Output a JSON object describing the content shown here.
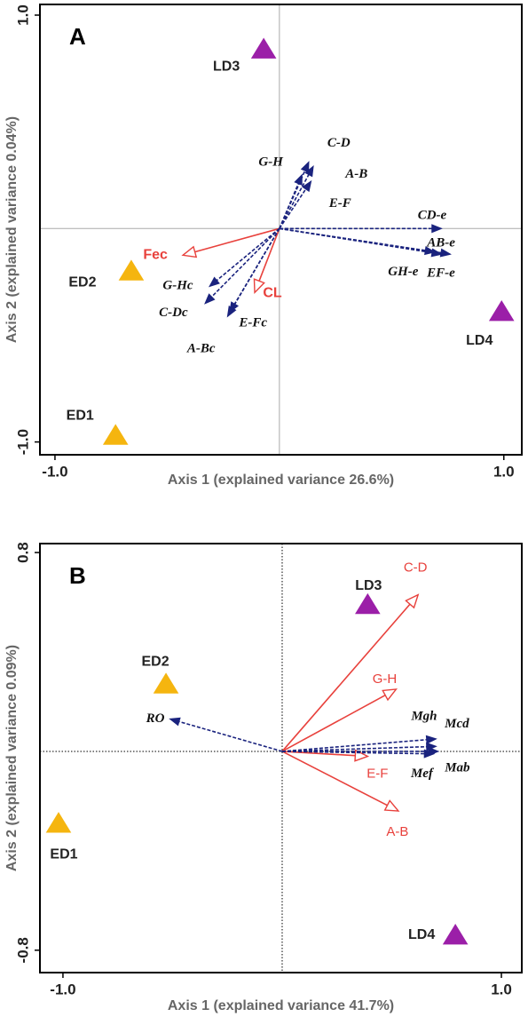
{
  "chart_data": [
    {
      "type": "biplot",
      "title": "A",
      "xlabel": "Axis 1 (explained variance 26.6%)",
      "ylabel": "Axis 2 (explained variance 0.04%)",
      "xlim": [
        -1.067,
        1.08
      ],
      "ylim": [
        -1.06,
        1.05
      ],
      "xticks": [
        {
          "value": -1,
          "label": "-1.0"
        },
        {
          "value": 1,
          "label": "1.0"
        }
      ],
      "yticks": [
        {
          "value": -1,
          "label": "-1.0"
        },
        {
          "value": 1,
          "label": "1.0"
        }
      ],
      "samples": [
        {
          "name": "LD3",
          "x": -0.07,
          "y": 0.84,
          "color": "#9b1fa8"
        },
        {
          "name": "LD4",
          "x": 0.99,
          "y": -0.39,
          "color": "#9b1fa8"
        },
        {
          "name": "ED2",
          "x": -0.66,
          "y": -0.2,
          "color": "#f5b50f"
        },
        {
          "name": "ED1",
          "x": -0.73,
          "y": -0.97,
          "color": "#f5b50f"
        }
      ],
      "vectors": [
        {
          "name": "Fec",
          "x": -0.43,
          "y": -0.125,
          "color": "#e8413c"
        },
        {
          "name": "CL",
          "x": -0.11,
          "y": -0.3,
          "color": "#e8413c"
        },
        {
          "name": "G-H",
          "x": 0.1,
          "y": 0.25,
          "color": "#1a237e"
        },
        {
          "name": "C-D",
          "x": 0.13,
          "y": 0.31,
          "color": "#1a237e"
        },
        {
          "name": "A-B",
          "x": 0.15,
          "y": 0.29,
          "color": "#1a237e"
        },
        {
          "name": "E-F",
          "x": 0.14,
          "y": 0.22,
          "color": "#1a237e"
        },
        {
          "name": "CD-e",
          "x": 0.72,
          "y": 0,
          "color": "#1a237e"
        },
        {
          "name": "AB-e",
          "x": 0.76,
          "y": -0.12,
          "color": "#1a237e"
        },
        {
          "name": "EF-e",
          "x": 0.72,
          "y": -0.12,
          "color": "#1a237e"
        },
        {
          "name": "GH-e",
          "x": 0.69,
          "y": -0.11,
          "color": "#1a237e"
        },
        {
          "name": "G-Hc",
          "x": -0.31,
          "y": -0.27,
          "color": "#1a237e"
        },
        {
          "name": "C-Dc",
          "x": -0.33,
          "y": -0.35,
          "color": "#1a237e"
        },
        {
          "name": "E-Fc",
          "x": -0.22,
          "y": -0.39,
          "color": "#1a237e"
        },
        {
          "name": "A-Bc",
          "x": -0.23,
          "y": -0.41,
          "color": "#1a237e"
        }
      ]
    },
    {
      "type": "biplot",
      "title": "B",
      "xlabel": "Axis 1 (explained variance 41.7%)",
      "ylabel": "Axis 2 (explained variance 0.09%)",
      "xlim": [
        -1.105,
        1.093
      ],
      "ylim": [
        -0.89,
        0.836
      ],
      "xticks": [
        {
          "value": -1,
          "label": "-1.0"
        },
        {
          "value": 1,
          "label": "1.0"
        }
      ],
      "yticks": [
        -0.8,
        0.8
      ],
      "samples": [
        {
          "name": "LD3",
          "x": 0.39,
          "y": 0.59,
          "color": "#9b1fa8"
        },
        {
          "name": "LD4",
          "x": 0.79,
          "y": -0.74,
          "color": "#9b1fa8"
        },
        {
          "name": "ED2",
          "x": -0.53,
          "y": 0.27,
          "color": "#f5b50f"
        },
        {
          "name": "ED1",
          "x": -1.02,
          "y": -0.29,
          "color": "#f5b50f"
        }
      ],
      "vectors": [
        {
          "name": "C-D",
          "x": 0.62,
          "y": 0.63,
          "color": "#e8413c"
        },
        {
          "name": "G-H",
          "x": 0.52,
          "y": 0.25,
          "color": "#e8413c"
        },
        {
          "name": "E-F",
          "x": 0.39,
          "y": -0.02,
          "color": "#e8413c"
        },
        {
          "name": "A-B",
          "x": 0.53,
          "y": -0.24,
          "color": "#e8413c"
        },
        {
          "name": "RO",
          "x": -0.51,
          "y": 0.13,
          "color": "#1a237e"
        },
        {
          "name": "Mgh",
          "x": 0.7,
          "y": 0.05,
          "color": "#1a237e"
        },
        {
          "name": "Mcd",
          "x": 0.7,
          "y": 0.02,
          "color": "#1a237e"
        },
        {
          "name": "Mef",
          "x": 0.69,
          "y": -0.01,
          "color": "#1a237e"
        },
        {
          "name": "Mab",
          "x": 0.71,
          "y": 0,
          "color": "#1a237e"
        }
      ]
    }
  ]
}
